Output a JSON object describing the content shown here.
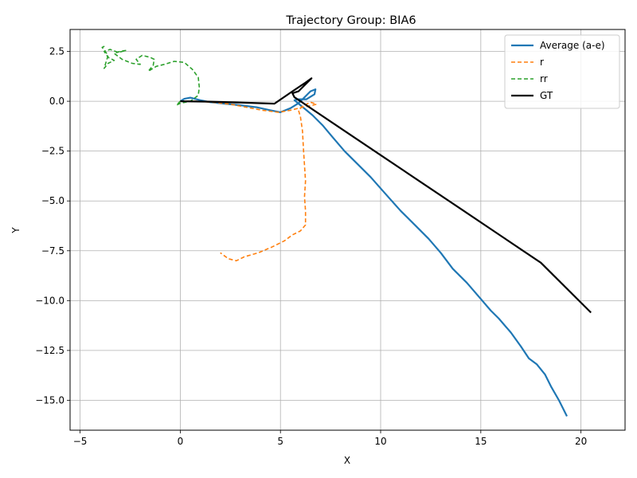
{
  "chart_data": {
    "type": "line",
    "title": "Trajectory Group: BIA6",
    "xlabel": "X",
    "ylabel": "Y",
    "xlim": [
      -5.5,
      22.2
    ],
    "ylim": [
      -16.5,
      3.6
    ],
    "xticks": [
      -5,
      0,
      5,
      10,
      15,
      20
    ],
    "yticks": [
      2.5,
      0.0,
      -2.5,
      -5.0,
      -7.5,
      -10.0,
      -12.5,
      -15.0
    ],
    "ytick_labels": [
      "2.5",
      "0.0",
      "−2.5",
      "−5.0",
      "−7.5",
      "−10.0",
      "−12.5",
      "−15.0"
    ],
    "xtick_labels": [
      "−5",
      "0",
      "5",
      "10",
      "15",
      "20"
    ],
    "grid": true,
    "legend_position": "top-right",
    "series": [
      {
        "name": "Average (a-e)",
        "color": "#1f77b4",
        "style": "solid",
        "points": [
          [
            0,
            0
          ],
          [
            0.2,
            0.12
          ],
          [
            0.5,
            0.18
          ],
          [
            1.0,
            0.05
          ],
          [
            1.5,
            -0.05
          ],
          [
            2.2,
            -0.12
          ],
          [
            3.0,
            -0.2
          ],
          [
            3.8,
            -0.3
          ],
          [
            4.5,
            -0.45
          ],
          [
            5.0,
            -0.55
          ],
          [
            5.5,
            -0.35
          ],
          [
            5.9,
            -0.1
          ],
          [
            6.2,
            0.2
          ],
          [
            6.5,
            0.5
          ],
          [
            6.75,
            0.6
          ],
          [
            6.7,
            0.35
          ],
          [
            6.3,
            0.1
          ],
          [
            5.9,
            0.1
          ],
          [
            5.7,
            0.05
          ],
          [
            6.0,
            -0.2
          ],
          [
            6.6,
            -0.7
          ],
          [
            7.1,
            -1.2
          ],
          [
            7.6,
            -1.8
          ],
          [
            8.2,
            -2.5
          ],
          [
            8.8,
            -3.1
          ],
          [
            9.5,
            -3.8
          ],
          [
            10.2,
            -4.6
          ],
          [
            11.0,
            -5.5
          ],
          [
            11.7,
            -6.2
          ],
          [
            12.4,
            -6.9
          ],
          [
            13.0,
            -7.6
          ],
          [
            13.6,
            -8.4
          ],
          [
            14.3,
            -9.1
          ],
          [
            14.9,
            -9.8
          ],
          [
            15.5,
            -10.5
          ],
          [
            15.9,
            -10.9
          ],
          [
            16.5,
            -11.6
          ],
          [
            17.0,
            -12.3
          ],
          [
            17.4,
            -12.9
          ],
          [
            17.8,
            -13.2
          ],
          [
            18.2,
            -13.7
          ],
          [
            18.5,
            -14.3
          ],
          [
            18.9,
            -15.0
          ],
          [
            19.3,
            -15.8
          ]
        ]
      },
      {
        "name": "r",
        "color": "#ff7f0e",
        "style": "dashed",
        "points": [
          [
            0,
            0
          ],
          [
            0.8,
            0.0
          ],
          [
            1.6,
            -0.05
          ],
          [
            2.5,
            -0.15
          ],
          [
            3.3,
            -0.3
          ],
          [
            4.1,
            -0.45
          ],
          [
            4.9,
            -0.55
          ],
          [
            5.5,
            -0.45
          ],
          [
            6.1,
            -0.3
          ],
          [
            6.6,
            -0.2
          ],
          [
            6.8,
            -0.15
          ],
          [
            6.5,
            -0.05
          ],
          [
            6.1,
            -0.25
          ],
          [
            5.9,
            -0.45
          ],
          [
            6.0,
            -0.8
          ],
          [
            6.1,
            -1.5
          ],
          [
            6.15,
            -2.4
          ],
          [
            6.2,
            -3.2
          ],
          [
            6.25,
            -4.0
          ],
          [
            6.2,
            -4.8
          ],
          [
            6.25,
            -5.5
          ],
          [
            6.25,
            -6.2
          ],
          [
            6.0,
            -6.5
          ],
          [
            5.6,
            -6.7
          ],
          [
            5.2,
            -7.0
          ],
          [
            4.6,
            -7.3
          ],
          [
            3.9,
            -7.6
          ],
          [
            3.2,
            -7.8
          ],
          [
            2.8,
            -8.0
          ],
          [
            2.4,
            -7.9
          ],
          [
            2.0,
            -7.6
          ]
        ]
      },
      {
        "name": "rr",
        "color": "#2ca02c",
        "style": "dashed",
        "points": [
          [
            0,
            0
          ],
          [
            -0.2,
            -0.2
          ],
          [
            0,
            -0.1
          ],
          [
            0.5,
            0.0
          ],
          [
            0.9,
            0.3
          ],
          [
            0.95,
            0.7
          ],
          [
            0.9,
            1.2
          ],
          [
            0.6,
            1.6
          ],
          [
            0.2,
            1.95
          ],
          [
            -0.3,
            2.0
          ],
          [
            -0.8,
            1.85
          ],
          [
            -1.2,
            1.75
          ],
          [
            -1.6,
            1.5
          ],
          [
            -1.35,
            1.8
          ],
          [
            -1.3,
            2.1
          ],
          [
            -1.5,
            2.2
          ],
          [
            -1.9,
            2.3
          ],
          [
            -2.2,
            2.1
          ],
          [
            -2.0,
            1.85
          ],
          [
            -2.4,
            1.9
          ],
          [
            -2.9,
            2.1
          ],
          [
            -3.3,
            2.4
          ],
          [
            -3.0,
            2.5
          ],
          [
            -2.7,
            2.55
          ],
          [
            -3.1,
            2.45
          ],
          [
            -3.5,
            2.6
          ],
          [
            -3.8,
            2.5
          ],
          [
            -3.6,
            2.2
          ],
          [
            -3.3,
            2.05
          ],
          [
            -3.6,
            1.9
          ],
          [
            -3.8,
            1.65
          ],
          [
            -3.6,
            2.3
          ],
          [
            -3.9,
            2.7
          ],
          [
            -3.7,
            2.8
          ]
        ]
      },
      {
        "name": "GT",
        "color": "#000000",
        "style": "solid",
        "points": [
          [
            0,
            0
          ],
          [
            1.5,
            -0.02
          ],
          [
            3.5,
            -0.08
          ],
          [
            4.7,
            -0.12
          ],
          [
            5.6,
            0.5
          ],
          [
            6.2,
            0.9
          ],
          [
            6.55,
            1.15
          ],
          [
            5.9,
            0.5
          ],
          [
            5.6,
            0.4
          ],
          [
            5.7,
            0.2
          ],
          [
            6.0,
            0.0
          ],
          [
            8.0,
            -1.35
          ],
          [
            10.0,
            -2.7
          ],
          [
            12.0,
            -4.05
          ],
          [
            14.0,
            -5.4
          ],
          [
            16.0,
            -6.75
          ],
          [
            18.0,
            -8.1
          ],
          [
            20.5,
            -10.6
          ]
        ]
      }
    ]
  }
}
